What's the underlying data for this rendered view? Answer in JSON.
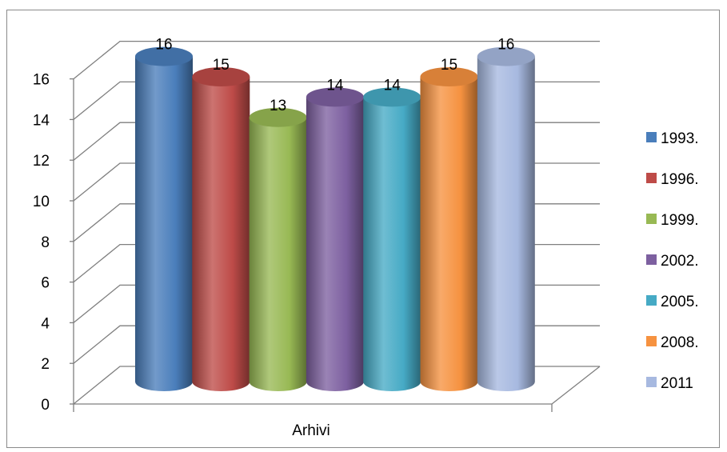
{
  "chart_data": {
    "type": "bar",
    "style": "3d-cylinder",
    "title": "",
    "xlabel": "",
    "ylabel": "",
    "categories": [
      "Arhivi"
    ],
    "ylim": [
      0,
      16
    ],
    "yticks": [
      "0",
      "2",
      "4",
      "6",
      "8",
      "10",
      "12",
      "14",
      "16"
    ],
    "grid": true,
    "legend_position": "right",
    "series": [
      {
        "name": "1993.",
        "values": [
          16
        ],
        "label": "16",
        "color": "#4a7ebb"
      },
      {
        "name": "1996.",
        "values": [
          15
        ],
        "label": "15",
        "color": "#be4b48"
      },
      {
        "name": "1999.",
        "values": [
          13
        ],
        "label": "13",
        "color": "#98b954"
      },
      {
        "name": "2002.",
        "values": [
          14
        ],
        "label": "14",
        "color": "#7d60a0"
      },
      {
        "name": "2005.",
        "values": [
          14
        ],
        "label": "14",
        "color": "#46aac5"
      },
      {
        "name": "2008.",
        "values": [
          15
        ],
        "label": "15",
        "color": "#f69240"
      },
      {
        "name": "2011",
        "values": [
          16
        ],
        "label": "16",
        "color": "#a7b9e0"
      }
    ]
  }
}
